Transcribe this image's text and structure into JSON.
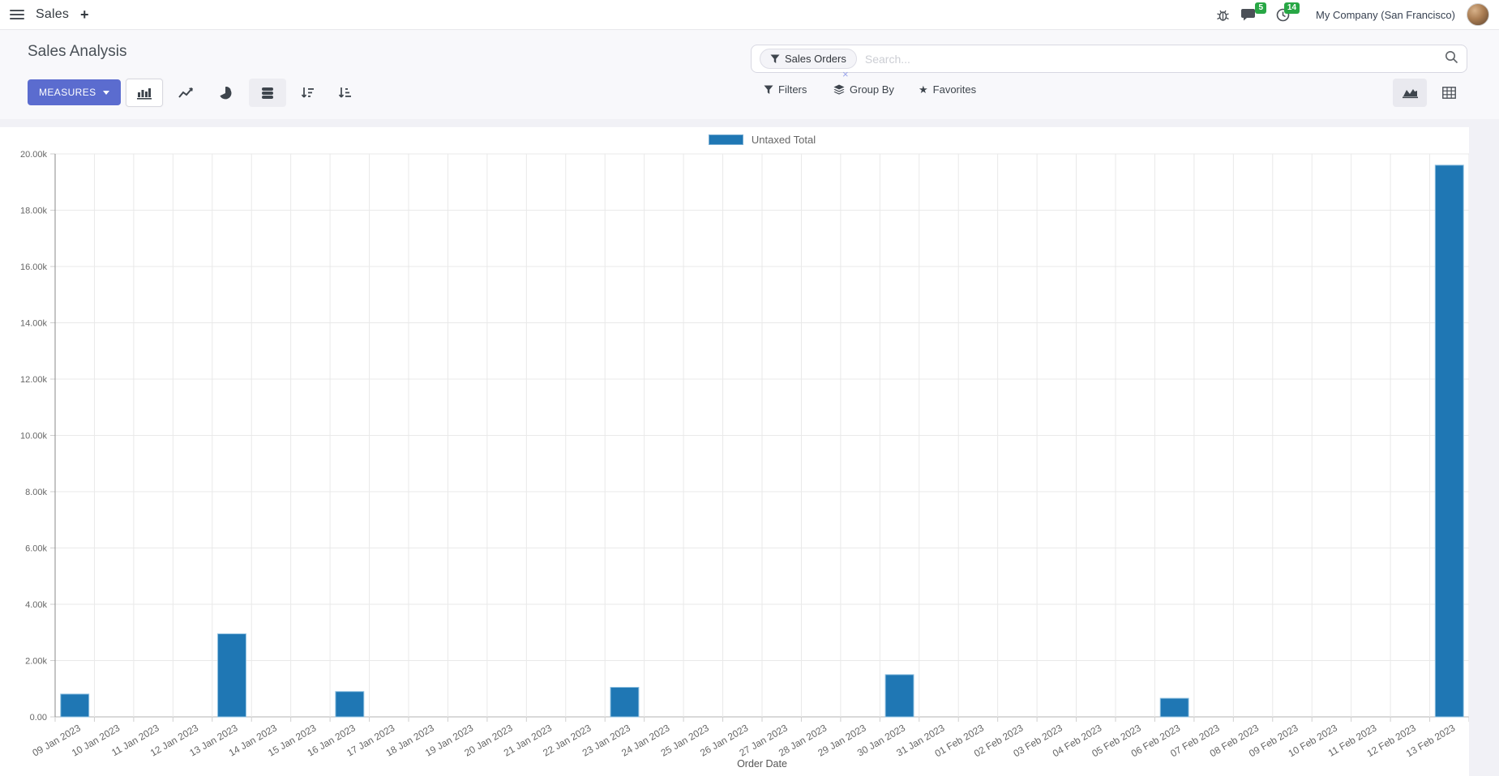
{
  "navbar": {
    "menu_title": "Sales",
    "plus_label": "+",
    "messages_badge": "5",
    "activities_badge": "14",
    "company": "My Company (San Francisco)"
  },
  "control_panel": {
    "breadcrumb": "Sales Analysis",
    "measures_label": "MEASURES",
    "filters_label": "Filters",
    "group_by_label": "Group By",
    "favorites_label": "Favorites",
    "search": {
      "facet": "Sales Orders",
      "facet_remove": "×",
      "placeholder": "Search..."
    }
  },
  "legend": {
    "label": "Untaxed Total"
  },
  "colors": {
    "primary": "#5b6ccf",
    "bar": "#1f77b4",
    "bar_border": "#8fc0e0",
    "badge_green": "#28a745",
    "grid": "#e9e9e9",
    "axis_line": "#8a8a8a",
    "baseline": "#b3b3b3",
    "tick": "#cfcfcf",
    "axis_text": "#666666"
  },
  "chart_data": {
    "type": "bar",
    "title": "",
    "xlabel": "Order Date",
    "ylabel": "",
    "ylim": [
      0,
      20000
    ],
    "ytick_step": 2000,
    "ytick_labels": [
      "0.00",
      "2.00k",
      "4.00k",
      "6.00k",
      "8.00k",
      "10.00k",
      "12.00k",
      "14.00k",
      "16.00k",
      "18.00k",
      "20.00k"
    ],
    "grid": true,
    "legend_position": "top",
    "categories": [
      "09 Jan 2023",
      "10 Jan 2023",
      "11 Jan 2023",
      "12 Jan 2023",
      "13 Jan 2023",
      "14 Jan 2023",
      "15 Jan 2023",
      "16 Jan 2023",
      "17 Jan 2023",
      "18 Jan 2023",
      "19 Jan 2023",
      "20 Jan 2023",
      "21 Jan 2023",
      "22 Jan 2023",
      "23 Jan 2023",
      "24 Jan 2023",
      "25 Jan 2023",
      "26 Jan 2023",
      "27 Jan 2023",
      "28 Jan 2023",
      "29 Jan 2023",
      "30 Jan 2023",
      "31 Jan 2023",
      "01 Feb 2023",
      "02 Feb 2023",
      "03 Feb 2023",
      "04 Feb 2023",
      "05 Feb 2023",
      "06 Feb 2023",
      "07 Feb 2023",
      "08 Feb 2023",
      "09 Feb 2023",
      "10 Feb 2023",
      "11 Feb 2023",
      "12 Feb 2023",
      "13 Feb 2023"
    ],
    "series": [
      {
        "name": "Untaxed Total",
        "values": [
          810,
          0,
          0,
          0,
          2950,
          0,
          0,
          900,
          0,
          0,
          0,
          0,
          0,
          0,
          1050,
          0,
          0,
          0,
          0,
          0,
          0,
          1500,
          0,
          0,
          0,
          0,
          0,
          0,
          660,
          0,
          0,
          0,
          0,
          0,
          0,
          19600
        ]
      }
    ]
  }
}
